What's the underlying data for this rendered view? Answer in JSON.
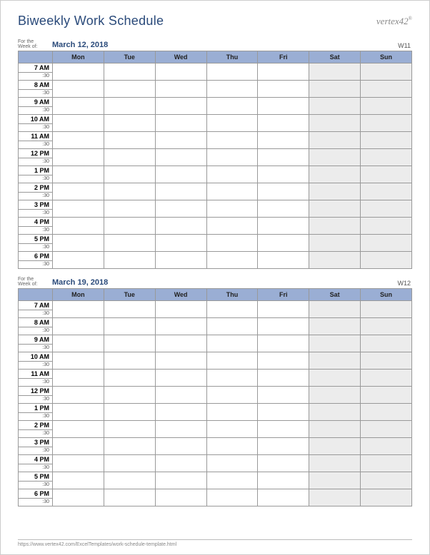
{
  "title": "Biweekly Work Schedule",
  "logo_text": "vertex42",
  "for_week_label": "For the\nWeek of:",
  "days": [
    "Mon",
    "Tue",
    "Wed",
    "Thu",
    "Fri",
    "Sat",
    "Sun"
  ],
  "weekend_idx": [
    5,
    6
  ],
  "hours": [
    "7 AM",
    "8 AM",
    "9 AM",
    "10 AM",
    "11 AM",
    "12 PM",
    "1 PM",
    "2 PM",
    "3 PM",
    "4 PM",
    "5 PM",
    "6 PM"
  ],
  "half_label": ":30",
  "weeks": [
    {
      "date": "March 12, 2018",
      "wnum": "W11"
    },
    {
      "date": "March 19, 2018",
      "wnum": "W12"
    }
  ],
  "footer_url": "https://www.vertex42.com/ExcelTemplates/work-schedule-template.html",
  "colors": {
    "header_bg": "#9aaed4",
    "weekend_bg": "#ececec",
    "title": "#2a4a7a"
  }
}
